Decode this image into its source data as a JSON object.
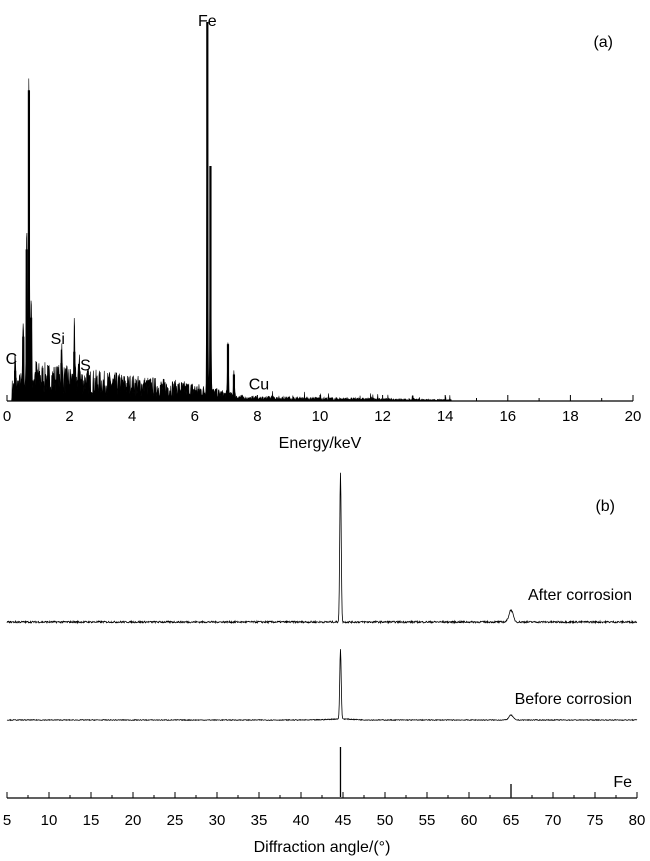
{
  "chart_data": [
    {
      "panel_label": "(a)",
      "type": "bar",
      "xlabel": "Energy/keV",
      "ylabel": "",
      "xlim": [
        0,
        20
      ],
      "ylim": [
        0,
        100
      ],
      "x_ticks": [
        0,
        2,
        4,
        6,
        8,
        10,
        12,
        14,
        16,
        18,
        20
      ],
      "grid": false,
      "peak_annotations": [
        {
          "text": "C",
          "x": 0.27,
          "y": 9
        },
        {
          "text": "Si",
          "x": 1.75,
          "y": 14
        },
        {
          "text": "S",
          "x": 2.25,
          "y": 7
        },
        {
          "text": "Fe",
          "x": 6.4,
          "y": 100
        },
        {
          "text": "Cu",
          "x": 8.05,
          "y": 2
        }
      ],
      "peaks": [
        {
          "x": 0.26,
          "y": 8
        },
        {
          "x": 0.52,
          "y": 17
        },
        {
          "x": 0.63,
          "y": 40
        },
        {
          "x": 0.7,
          "y": 82
        },
        {
          "x": 0.77,
          "y": 22
        },
        {
          "x": 1.74,
          "y": 10
        },
        {
          "x": 2.15,
          "y": 13
        },
        {
          "x": 2.31,
          "y": 8
        },
        {
          "x": 6.4,
          "y": 100
        },
        {
          "x": 6.5,
          "y": 62
        },
        {
          "x": 7.06,
          "y": 15
        },
        {
          "x": 7.25,
          "y": 7
        }
      ]
    },
    {
      "panel_label": "(b)",
      "type": "line",
      "xlabel": "Diffraction angle/(°)",
      "ylabel": "",
      "xlim": [
        5,
        80
      ],
      "x_ticks": [
        5,
        10,
        15,
        20,
        25,
        30,
        35,
        40,
        45,
        50,
        55,
        60,
        65,
        70,
        75,
        80
      ],
      "grid": false,
      "series": [
        {
          "name": "After corrosion",
          "peaks": [
            {
              "x": 44.7,
              "y": 100
            },
            {
              "x": 65.0,
              "y": 8
            }
          ]
        },
        {
          "name": "Before corrosion",
          "peaks": [
            {
              "x": 44.7,
              "y": 100
            },
            {
              "x": 65.0,
              "y": 7
            }
          ]
        },
        {
          "name": "Fe",
          "type": "stick",
          "peaks": [
            {
              "x": 44.7,
              "y": 100
            },
            {
              "x": 65.0,
              "y": 26
            }
          ]
        }
      ]
    }
  ]
}
